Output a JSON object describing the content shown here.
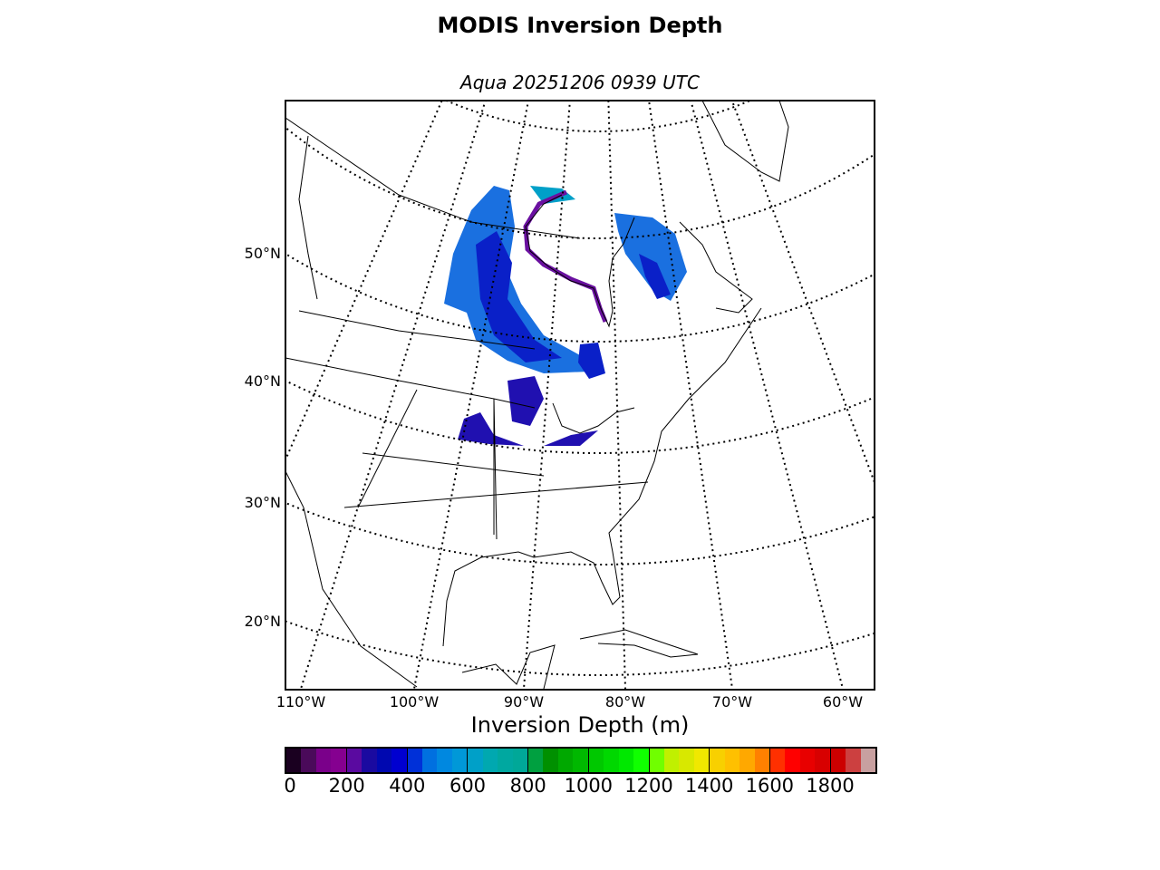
{
  "title": "MODIS Inversion Depth",
  "subtitle": "Aqua 20251206 0939 UTC",
  "map": {
    "projection": "lambert-conformal",
    "lat_labels": [
      {
        "lat": 50,
        "label": "50°N"
      },
      {
        "lat": 40,
        "label": "40°N"
      },
      {
        "lat": 30,
        "label": "30°N"
      },
      {
        "lat": 20,
        "label": "20°N"
      }
    ],
    "lon_labels": [
      {
        "lon": -110,
        "label": "110°W"
      },
      {
        "lon": -100,
        "label": "100°W"
      },
      {
        "lon": -90,
        "label": "90°W"
      },
      {
        "lon": -80,
        "label": "80°W"
      },
      {
        "lon": -70,
        "label": "70°W"
      },
      {
        "lon": -60,
        "label": "60°W"
      }
    ],
    "graticule_style": "dotted"
  },
  "colorbar": {
    "label": "Inversion Depth (m)",
    "min": 0,
    "max": 1950,
    "step": 50,
    "ticks": [
      "0",
      "200",
      "400",
      "600",
      "800",
      "1000",
      "1200",
      "1400",
      "1600",
      "1800"
    ],
    "colors": [
      "#1a0020",
      "#4a0a5a",
      "#7a008a",
      "#850090",
      "#5a0aa0",
      "#1a0aa0",
      "#0008b0",
      "#0000d0",
      "#0030d8",
      "#0070e0",
      "#0088e0",
      "#0098d8",
      "#00a0c8",
      "#00a8b0",
      "#00a8a0",
      "#00a898",
      "#00a040",
      "#009000",
      "#00a800",
      "#00b800",
      "#00c800",
      "#00d800",
      "#00e800",
      "#10ff00",
      "#70ff00",
      "#c0f000",
      "#d8e800",
      "#f0e800",
      "#f8d000",
      "#ffc000",
      "#ffa800",
      "#ff8000",
      "#ff3000",
      "#ff0000",
      "#e80000",
      "#d80000",
      "#cc0000",
      "#cc4040",
      "#c8a0a0"
    ]
  }
}
